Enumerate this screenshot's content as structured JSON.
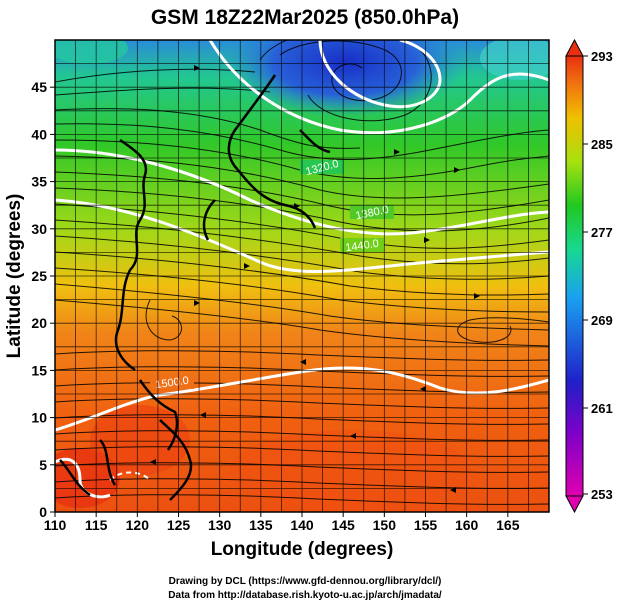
{
  "title": "GSM 18Z22Mar2025 (850.0hPa)",
  "axes": {
    "xlabel": "Longitude (degrees)",
    "ylabel": "Latitude  (degrees)",
    "xlim": [
      110,
      170
    ],
    "ylim": [
      0,
      50
    ],
    "x_ticks": [
      "110",
      "115",
      "120",
      "125",
      "130",
      "135",
      "140",
      "145",
      "150",
      "155",
      "160",
      "165"
    ],
    "y_ticks": [
      "0",
      "5",
      "10",
      "15",
      "20",
      "25",
      "30",
      "35",
      "40",
      "45"
    ]
  },
  "colorbar": {
    "ticks": [
      "253",
      "261",
      "269",
      "277",
      "285",
      "293"
    ],
    "colors": [
      "#e000b0",
      "#2020c8",
      "#1aa0f0",
      "#18d890",
      "#20c820",
      "#a8e010",
      "#f0c000",
      "#f07010",
      "#e83010"
    ]
  },
  "contour_labels": [
    "1500.0",
    "1440.0",
    "1380.0",
    "1320.0"
  ],
  "credits": {
    "line1": "Drawing by DCL (https://www.gfd-dennou.org/library/dcl/)",
    "line2": "Data from http://database.rish.kyoto-u.ac.jp/arch/jmadata/"
  }
}
